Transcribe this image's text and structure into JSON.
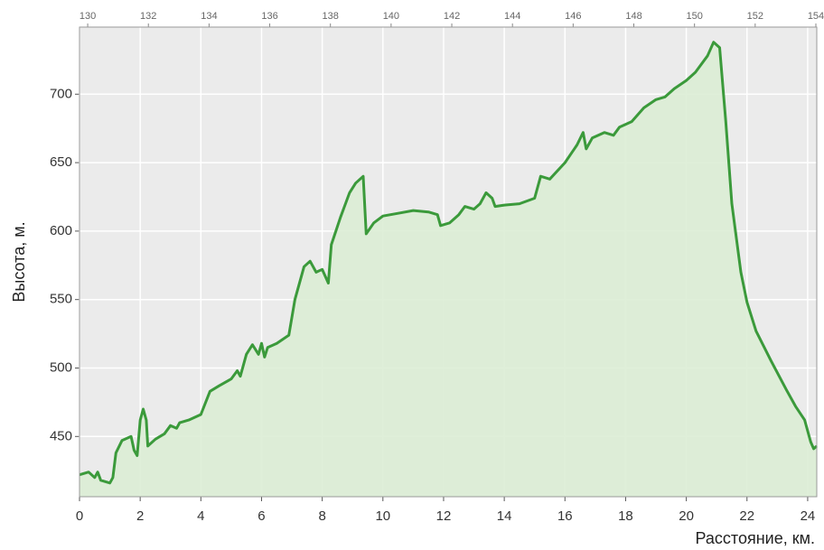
{
  "chart_data": {
    "type": "area",
    "ylabel": "Высота, м.",
    "xlabel": "Расстояние, км.",
    "x": [
      0,
      0.3,
      0.5,
      0.6,
      0.7,
      1.0,
      1.1,
      1.2,
      1.4,
      1.7,
      1.8,
      1.9,
      2.0,
      2.1,
      2.2,
      2.25,
      2.5,
      2.8,
      3.0,
      3.2,
      3.3,
      3.6,
      4.0,
      4.3,
      4.6,
      5.0,
      5.2,
      5.3,
      5.5,
      5.7,
      5.9,
      6.0,
      6.1,
      6.2,
      6.5,
      6.9,
      7.1,
      7.4,
      7.6,
      7.8,
      8.0,
      8.2,
      8.3,
      8.6,
      8.9,
      9.1,
      9.35,
      9.45,
      9.7,
      10.0,
      10.5,
      11.0,
      11.5,
      11.8,
      11.9,
      12.2,
      12.5,
      12.7,
      13.0,
      13.2,
      13.4,
      13.6,
      13.7,
      14.0,
      14.5,
      15.0,
      15.2,
      15.5,
      16.0,
      16.4,
      16.6,
      16.7,
      16.9,
      17.3,
      17.6,
      17.8,
      18.2,
      18.6,
      19.0,
      19.3,
      19.6,
      20.0,
      20.3,
      20.7,
      20.9,
      21.1,
      21.3,
      21.5,
      21.8,
      22.0,
      22.3,
      22.8,
      23.3,
      23.6,
      23.9,
      24.1,
      24.2,
      24.3
    ],
    "series": [
      {
        "name": "Высота",
        "color": "#3b9a3b",
        "fill": "#dcedd5",
        "values": [
          422,
          424,
          420,
          424,
          418,
          416,
          420,
          438,
          447,
          450,
          440,
          436,
          462,
          470,
          462,
          443,
          448,
          452,
          458,
          456,
          460,
          462,
          466,
          483,
          487,
          492,
          498,
          494,
          510,
          517,
          510,
          518,
          508,
          515,
          518,
          524,
          550,
          574,
          578,
          570,
          572,
          562,
          590,
          610,
          628,
          635,
          640,
          598,
          606,
          611,
          613,
          615,
          614,
          612,
          604,
          606,
          612,
          618,
          616,
          620,
          628,
          624,
          618,
          619,
          620,
          624,
          640,
          638,
          650,
          663,
          672,
          660,
          668,
          672,
          670,
          676,
          680,
          690,
          696,
          698,
          704,
          710,
          716,
          728,
          738,
          734,
          680,
          620,
          570,
          548,
          527,
          505,
          484,
          472,
          462,
          446,
          441,
          443
        ]
      }
    ],
    "xlim": [
      0,
      24.3
    ],
    "xticks": [
      0,
      2,
      4,
      6,
      8,
      10,
      12,
      14,
      16,
      18,
      20,
      22,
      24
    ],
    "x2lim": [
      129.73,
      154.03
    ],
    "x2ticks": [
      130,
      132,
      134,
      136,
      138,
      140,
      142,
      144,
      146,
      148,
      150,
      152,
      154
    ],
    "ylim": [
      406,
      749
    ],
    "yticks": [
      450,
      500,
      550,
      600,
      650,
      700
    ],
    "grid": true
  }
}
